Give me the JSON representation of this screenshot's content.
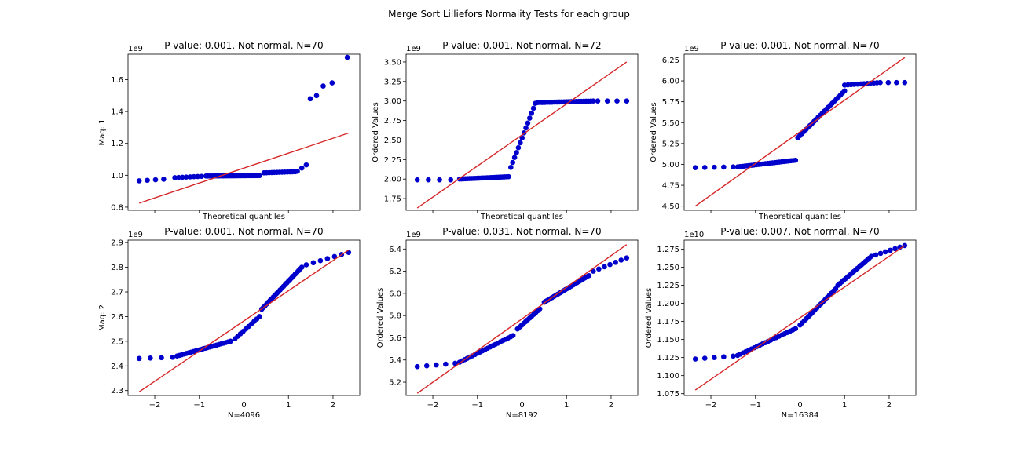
{
  "suptitle": "Merge Sort Lilliefors Normality Tests for each group",
  "colors": {
    "points": "#0000cc",
    "fit_line": "#d62728",
    "axes": "#000000"
  },
  "chart_data": [
    {
      "type": "scatter",
      "title": "P-value: 0.001, Not normal. N=70",
      "xlabel": "Theoretical quantiles",
      "ylabel": "Maq: 1",
      "scale_label": "1e9",
      "xlim": [
        -2.6,
        2.6
      ],
      "ylim": [
        0.78,
        1.76
      ],
      "x_ticks": [],
      "x_tick_marks": [
        -2,
        -1,
        0,
        1,
        2
      ],
      "y_ticks": [
        {
          "value": 0.8,
          "label": "0.8"
        },
        {
          "value": 1.0,
          "label": "1.0"
        },
        {
          "value": 1.2,
          "label": "1.2"
        },
        {
          "value": 1.4,
          "label": "1.4"
        },
        {
          "value": 1.6,
          "label": "1.6"
        }
      ],
      "fit_line": [
        [
          -2.35,
          0.825
        ],
        [
          2.35,
          1.265
        ]
      ],
      "segments": [
        {
          "from": -2.35,
          "to": -1.8,
          "n": 4,
          "y0": 0.965,
          "y1": 0.975
        },
        {
          "from": -1.55,
          "to": -0.95,
          "n": 8,
          "y0": 0.985,
          "y1": 0.993
        },
        {
          "from": -0.85,
          "to": 0.35,
          "n": 35,
          "y0": 0.995,
          "y1": 0.998
        },
        {
          "from": 0.45,
          "to": 1.15,
          "n": 13,
          "y0": 1.015,
          "y1": 1.022
        },
        {
          "from": 1.2,
          "to": 1.4,
          "n": 3,
          "y0": 1.025,
          "y1": 1.065
        },
        {
          "from": 1.49,
          "to": 1.49,
          "n": 1,
          "y0": 1.48,
          "y1": 1.48
        },
        {
          "from": 1.63,
          "to": 1.63,
          "n": 1,
          "y0": 1.5,
          "y1": 1.5
        },
        {
          "from": 1.78,
          "to": 1.78,
          "n": 1,
          "y0": 1.56,
          "y1": 1.56
        },
        {
          "from": 1.98,
          "to": 1.98,
          "n": 1,
          "y0": 1.58,
          "y1": 1.58
        },
        {
          "from": 2.32,
          "to": 2.32,
          "n": 1,
          "y0": 1.74,
          "y1": 1.74
        }
      ]
    },
    {
      "type": "scatter",
      "title": "P-value: 0.001, Not normal. N=72",
      "xlabel": "Theoretical quantiles",
      "ylabel": "Ordered Values",
      "scale_label": "1e9",
      "xlim": [
        -2.6,
        2.6
      ],
      "ylim": [
        1.6,
        3.6
      ],
      "x_ticks": [],
      "x_tick_marks": [
        -2,
        -1,
        0,
        1,
        2
      ],
      "y_ticks": [
        {
          "value": 1.75,
          "label": "1.75"
        },
        {
          "value": 2.0,
          "label": "2.00"
        },
        {
          "value": 2.25,
          "label": "2.25"
        },
        {
          "value": 2.5,
          "label": "2.50"
        },
        {
          "value": 2.75,
          "label": "2.75"
        },
        {
          "value": 3.0,
          "label": "3.00"
        },
        {
          "value": 3.25,
          "label": "3.25"
        },
        {
          "value": 3.5,
          "label": "3.50"
        }
      ],
      "fit_line": [
        [
          -2.35,
          1.63
        ],
        [
          2.35,
          3.5
        ]
      ],
      "segments": [
        {
          "from": -2.35,
          "to": -1.6,
          "n": 4,
          "y0": 1.99,
          "y1": 1.99
        },
        {
          "from": -1.4,
          "to": -0.3,
          "n": 26,
          "y0": 2.0,
          "y1": 2.03
        },
        {
          "from": -0.25,
          "to": 0.3,
          "n": 14,
          "y0": 2.15,
          "y1": 2.97
        },
        {
          "from": 0.35,
          "to": 1.6,
          "n": 24,
          "y0": 2.98,
          "y1": 3.0
        },
        {
          "from": 1.7,
          "to": 2.35,
          "n": 4,
          "y0": 3.0,
          "y1": 3.0
        }
      ]
    },
    {
      "type": "scatter",
      "title": "P-value: 0.001, Not normal. N=70",
      "xlabel": "Theoretical quantiles",
      "ylabel": "Ordered Values",
      "scale_label": "1e9",
      "xlim": [
        -2.6,
        2.6
      ],
      "ylim": [
        4.45,
        6.32
      ],
      "x_ticks": [],
      "x_tick_marks": [
        -2,
        -1,
        0,
        1,
        2
      ],
      "y_ticks": [
        {
          "value": 4.5,
          "label": "4.50"
        },
        {
          "value": 4.75,
          "label": "4.75"
        },
        {
          "value": 5.0,
          "label": "5.00"
        },
        {
          "value": 5.25,
          "label": "5.25"
        },
        {
          "value": 5.5,
          "label": "5.50"
        },
        {
          "value": 5.75,
          "label": "5.75"
        },
        {
          "value": 6.0,
          "label": "6.00"
        },
        {
          "value": 6.25,
          "label": "6.25"
        }
      ],
      "fit_line": [
        [
          -2.35,
          4.5
        ],
        [
          2.35,
          6.28
        ]
      ],
      "segments": [
        {
          "from": -2.35,
          "to": -1.5,
          "n": 5,
          "y0": 4.96,
          "y1": 4.97
        },
        {
          "from": -1.4,
          "to": -0.1,
          "n": 26,
          "y0": 4.97,
          "y1": 5.05
        },
        {
          "from": -0.05,
          "to": 1.0,
          "n": 24,
          "y0": 5.32,
          "y1": 5.88
        },
        {
          "from": 1.0,
          "to": 1.8,
          "n": 12,
          "y0": 5.95,
          "y1": 5.98
        },
        {
          "from": 1.98,
          "to": 2.35,
          "n": 3,
          "y0": 5.98,
          "y1": 5.98
        }
      ]
    },
    {
      "type": "scatter",
      "title": "P-value: 0.001, Not normal. N=70",
      "xlabel": "N=4096",
      "ylabel": "Maq: 2",
      "scale_label": "1e9",
      "xlim": [
        -2.6,
        2.6
      ],
      "ylim": [
        2.28,
        2.91
      ],
      "x_ticks": [
        {
          "value": -2,
          "label": "−2"
        },
        {
          "value": -1,
          "label": "−1"
        },
        {
          "value": 0,
          "label": "0"
        },
        {
          "value": 1,
          "label": "1"
        },
        {
          "value": 2,
          "label": "2"
        }
      ],
      "x_tick_marks": [
        -2,
        -1,
        0,
        1,
        2
      ],
      "y_ticks": [
        {
          "value": 2.3,
          "label": "2.3"
        },
        {
          "value": 2.4,
          "label": "2.4"
        },
        {
          "value": 2.5,
          "label": "2.5"
        },
        {
          "value": 2.6,
          "label": "2.6"
        },
        {
          "value": 2.7,
          "label": "2.7"
        },
        {
          "value": 2.8,
          "label": "2.8"
        },
        {
          "value": 2.9,
          "label": "2.9"
        }
      ],
      "fit_line": [
        [
          -2.35,
          2.295
        ],
        [
          2.35,
          2.87
        ]
      ],
      "segments": [
        {
          "from": -2.35,
          "to": -1.6,
          "n": 4,
          "y0": 2.43,
          "y1": 2.435
        },
        {
          "from": -1.5,
          "to": -0.3,
          "n": 24,
          "y0": 2.44,
          "y1": 2.5
        },
        {
          "from": -0.2,
          "to": 0.35,
          "n": 10,
          "y0": 2.51,
          "y1": 2.6
        },
        {
          "from": 0.4,
          "to": 1.3,
          "n": 25,
          "y0": 2.63,
          "y1": 2.8
        },
        {
          "from": 1.4,
          "to": 2.35,
          "n": 7,
          "y0": 2.81,
          "y1": 2.86
        }
      ]
    },
    {
      "type": "scatter",
      "title": "P-value: 0.031, Not normal. N=70",
      "xlabel": "N=8192",
      "ylabel": "Ordered Values",
      "scale_label": "1e9",
      "xlim": [
        -2.6,
        2.6
      ],
      "ylim": [
        5.08,
        6.48
      ],
      "x_ticks": [
        {
          "value": -2,
          "label": "−2"
        },
        {
          "value": -1,
          "label": "−1"
        },
        {
          "value": 0,
          "label": "0"
        },
        {
          "value": 1,
          "label": "1"
        },
        {
          "value": 2,
          "label": "2"
        }
      ],
      "x_tick_marks": [
        -2,
        -1,
        0,
        1,
        2
      ],
      "y_ticks": [
        {
          "value": 5.2,
          "label": "5.2"
        },
        {
          "value": 5.4,
          "label": "5.4"
        },
        {
          "value": 5.6,
          "label": "5.6"
        },
        {
          "value": 5.8,
          "label": "5.8"
        },
        {
          "value": 6.0,
          "label": "6.0"
        },
        {
          "value": 6.2,
          "label": "6.2"
        },
        {
          "value": 6.4,
          "label": "6.4"
        }
      ],
      "fit_line": [
        [
          -2.35,
          5.1
        ],
        [
          2.35,
          6.44
        ]
      ],
      "segments": [
        {
          "from": -2.35,
          "to": -1.5,
          "n": 5,
          "y0": 5.34,
          "y1": 5.37
        },
        {
          "from": -1.4,
          "to": -0.2,
          "n": 22,
          "y0": 5.38,
          "y1": 5.62
        },
        {
          "from": -0.1,
          "to": 0.4,
          "n": 12,
          "y0": 5.68,
          "y1": 5.86
        },
        {
          "from": 0.5,
          "to": 1.5,
          "n": 24,
          "y0": 5.92,
          "y1": 6.16
        },
        {
          "from": 1.6,
          "to": 2.35,
          "n": 7,
          "y0": 6.2,
          "y1": 6.32
        }
      ]
    },
    {
      "type": "scatter",
      "title": "P-value: 0.007, Not normal. N=70",
      "xlabel": "N=16384",
      "ylabel": "Ordered Values",
      "scale_label": "1e10",
      "xlim": [
        -2.6,
        2.6
      ],
      "ylim": [
        1.0725,
        1.2875
      ],
      "x_ticks": [
        {
          "value": -2,
          "label": "−2"
        },
        {
          "value": -1,
          "label": "−1"
        },
        {
          "value": 0,
          "label": "0"
        },
        {
          "value": 1,
          "label": "1"
        },
        {
          "value": 2,
          "label": "2"
        }
      ],
      "x_tick_marks": [
        -2,
        -1,
        0,
        1,
        2
      ],
      "y_ticks": [
        {
          "value": 1.075,
          "label": "1.075"
        },
        {
          "value": 1.1,
          "label": "1.100"
        },
        {
          "value": 1.125,
          "label": "1.125"
        },
        {
          "value": 1.15,
          "label": "1.150"
        },
        {
          "value": 1.175,
          "label": "1.175"
        },
        {
          "value": 1.2,
          "label": "1.200"
        },
        {
          "value": 1.225,
          "label": "1.225"
        },
        {
          "value": 1.25,
          "label": "1.250"
        },
        {
          "value": 1.275,
          "label": "1.275"
        }
      ],
      "fit_line": [
        [
          -2.35,
          1.08
        ],
        [
          2.35,
          1.28
        ]
      ],
      "segments": [
        {
          "from": -2.35,
          "to": -1.5,
          "n": 5,
          "y0": 1.123,
          "y1": 1.127
        },
        {
          "from": -1.4,
          "to": -0.1,
          "n": 22,
          "y0": 1.128,
          "y1": 1.165
        },
        {
          "from": 0.0,
          "to": 0.8,
          "n": 18,
          "y0": 1.17,
          "y1": 1.22
        },
        {
          "from": 0.85,
          "to": 1.6,
          "n": 18,
          "y0": 1.225,
          "y1": 1.265
        },
        {
          "from": 1.7,
          "to": 2.35,
          "n": 7,
          "y0": 1.267,
          "y1": 1.28
        }
      ]
    }
  ]
}
